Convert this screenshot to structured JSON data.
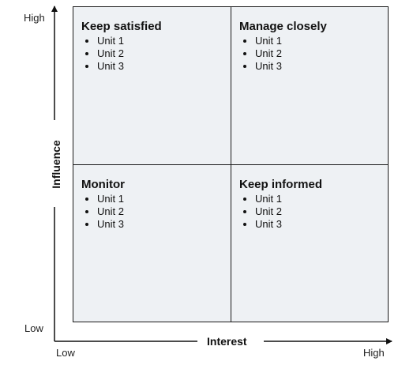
{
  "quadrants": {
    "top_left": {
      "title": "Keep satisfied",
      "items": [
        "Unit 1",
        "Unit 2",
        "Unit 3"
      ]
    },
    "top_right": {
      "title": "Manage closely",
      "items": [
        "Unit 1",
        "Unit 2",
        "Unit 3"
      ]
    },
    "bottom_left": {
      "title": "Monitor",
      "items": [
        "Unit 1",
        "Unit 2",
        "Unit 3"
      ]
    },
    "bottom_right": {
      "title": "Keep informed",
      "items": [
        "Unit 1",
        "Unit 2",
        "Unit 3"
      ]
    }
  },
  "axes": {
    "x": {
      "title": "Interest",
      "low": "Low",
      "high": "High"
    },
    "y": {
      "title": "Influence",
      "low": "Low",
      "high": "High"
    }
  },
  "colors": {
    "quadrant_fill": "#eef1f4",
    "lines": "#1a1a1a",
    "text": "#111111"
  }
}
